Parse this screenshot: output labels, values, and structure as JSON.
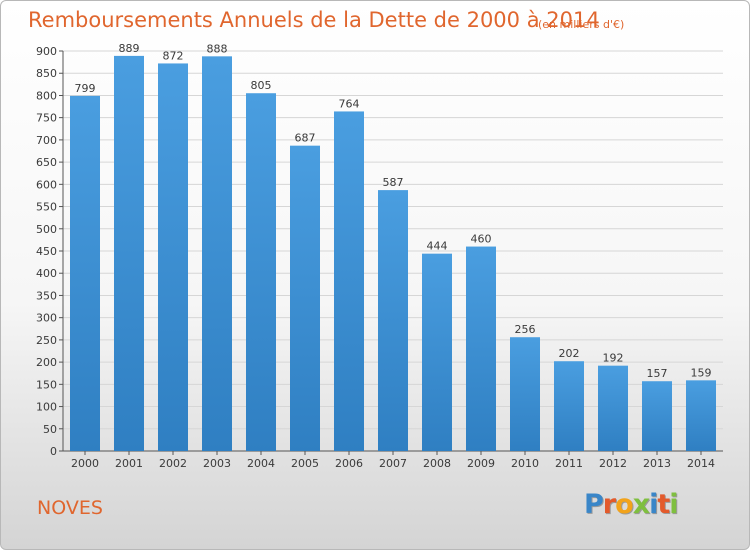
{
  "header": {
    "title": "Remboursements Annuels de la Dette de 2000 à 2014",
    "subtitle": "(en milliers d'€)"
  },
  "footer": {
    "city": "NOVES",
    "logo": {
      "letters": [
        "P",
        "r",
        "o",
        "x",
        "i",
        "t",
        "i"
      ],
      "colors": [
        "#3a86c8",
        "#e35a2b",
        "#f2a31b",
        "#7fbf3f",
        "#3a86c8",
        "#e35a2b",
        "#7fbf3f"
      ]
    }
  },
  "chart_data": {
    "type": "bar",
    "categories": [
      "2000",
      "2001",
      "2002",
      "2003",
      "2004",
      "2005",
      "2006",
      "2007",
      "2008",
      "2009",
      "2010",
      "2011",
      "2012",
      "2013",
      "2014"
    ],
    "values": [
      799,
      889,
      872,
      888,
      805,
      687,
      764,
      587,
      444,
      460,
      256,
      202,
      192,
      157,
      159
    ],
    "data_labels": [
      "799",
      "889",
      "872",
      "888",
      "805",
      "687",
      "764",
      "587",
      "444",
      "460",
      "256",
      "202",
      "192",
      "157",
      "159"
    ],
    "y_ticks": [
      0,
      50,
      100,
      150,
      200,
      250,
      300,
      350,
      400,
      450,
      500,
      550,
      600,
      650,
      700,
      750,
      800,
      850,
      900
    ],
    "ylim": [
      0,
      900
    ],
    "grid": true,
    "bar_color": "#4a9ee0",
    "bar_color_dark": "#2f7fc2",
    "text_color": "#3a3a3a"
  }
}
